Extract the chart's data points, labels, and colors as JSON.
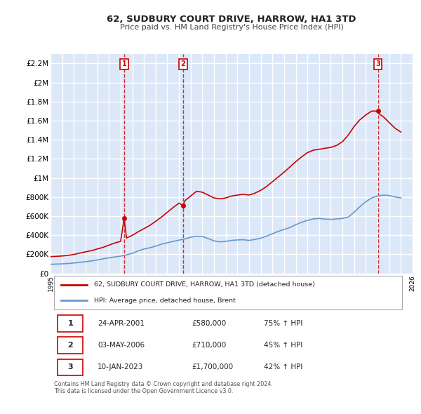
{
  "title": "62, SUDBURY COURT DRIVE, HARROW, HA1 3TD",
  "subtitle": "Price paid vs. HM Land Registry's House Price Index (HPI)",
  "ylabel_ticks": [
    "£0",
    "£200K",
    "£400K",
    "£600K",
    "£800K",
    "£1M",
    "£1.2M",
    "£1.4M",
    "£1.6M",
    "£1.8M",
    "£2M",
    "£2.2M"
  ],
  "ytick_values": [
    0,
    200000,
    400000,
    600000,
    800000,
    1000000,
    1200000,
    1400000,
    1600000,
    1800000,
    2000000,
    2200000
  ],
  "ylim": [
    0,
    2300000
  ],
  "xmin": 1995,
  "xmax": 2026,
  "plot_bg_color": "#dce8f8",
  "grid_color": "#ffffff",
  "hpi_color": "#6699cc",
  "price_color": "#cc0000",
  "vline_color": "#cc0000",
  "sale_dates": [
    2001.31,
    2006.34,
    2023.03
  ],
  "sale_prices": [
    580000,
    710000,
    1700000
  ],
  "sale_labels": [
    "1",
    "2",
    "3"
  ],
  "legend_label_red": "62, SUDBURY COURT DRIVE, HARROW, HA1 3TD (detached house)",
  "legend_label_blue": "HPI: Average price, detached house, Brent",
  "table_rows": [
    [
      "1",
      "24-APR-2001",
      "£580,000",
      "75% ↑ HPI"
    ],
    [
      "2",
      "03-MAY-2006",
      "£710,000",
      "45% ↑ HPI"
    ],
    [
      "3",
      "10-JAN-2023",
      "£1,700,000",
      "42% ↑ HPI"
    ]
  ],
  "footer": "Contains HM Land Registry data © Crown copyright and database right 2024.\nThis data is licensed under the Open Government Licence v3.0.",
  "hpi_x": [
    1995,
    1995.5,
    1996,
    1996.5,
    1997,
    1997.5,
    1998,
    1998.5,
    1999,
    1999.5,
    2000,
    2000.5,
    2001,
    2001.5,
    2002,
    2002.5,
    2003,
    2003.5,
    2004,
    2004.5,
    2005,
    2005.5,
    2006,
    2006.5,
    2007,
    2007.5,
    2008,
    2008.5,
    2009,
    2009.5,
    2010,
    2010.5,
    2011,
    2011.5,
    2012,
    2012.5,
    2013,
    2013.5,
    2014,
    2014.5,
    2015,
    2015.5,
    2016,
    2016.5,
    2017,
    2017.5,
    2018,
    2018.5,
    2019,
    2019.5,
    2020,
    2020.5,
    2021,
    2021.5,
    2022,
    2022.5,
    2023,
    2023.5,
    2024,
    2024.5,
    2025
  ],
  "hpi_y": [
    95000,
    97000,
    99000,
    103000,
    108000,
    115000,
    122000,
    130000,
    140000,
    152000,
    162000,
    172000,
    180000,
    193000,
    210000,
    235000,
    255000,
    268000,
    285000,
    305000,
    320000,
    335000,
    348000,
    360000,
    378000,
    390000,
    385000,
    365000,
    340000,
    330000,
    335000,
    345000,
    350000,
    352000,
    345000,
    355000,
    368000,
    390000,
    415000,
    440000,
    460000,
    480000,
    510000,
    535000,
    555000,
    570000,
    575000,
    568000,
    565000,
    570000,
    575000,
    590000,
    640000,
    700000,
    750000,
    790000,
    810000,
    820000,
    815000,
    800000,
    790000
  ],
  "price_x": [
    1995,
    1995.5,
    1996,
    1996.5,
    1997,
    1997.5,
    1998,
    1998.5,
    1999,
    1999.5,
    2000,
    2000.5,
    2001,
    2001.31,
    2001.5,
    2002,
    2002.5,
    2003,
    2003.5,
    2004,
    2004.5,
    2005,
    2005.5,
    2006,
    2006.34,
    2006.5,
    2007,
    2007.5,
    2008,
    2008.5,
    2009,
    2009.5,
    2010,
    2010.5,
    2011,
    2011.5,
    2012,
    2012.5,
    2013,
    2013.5,
    2014,
    2014.5,
    2015,
    2015.5,
    2016,
    2016.5,
    2017,
    2017.5,
    2018,
    2018.5,
    2019,
    2019.5,
    2020,
    2020.5,
    2021,
    2021.5,
    2022,
    2022.5,
    2023,
    2023.03,
    2023.5,
    2024,
    2024.5,
    2025
  ],
  "price_y": [
    175000,
    178000,
    182000,
    188000,
    198000,
    212000,
    225000,
    238000,
    255000,
    272000,
    295000,
    318000,
    335000,
    580000,
    370000,
    398000,
    435000,
    468000,
    502000,
    545000,
    590000,
    640000,
    690000,
    735000,
    710000,
    760000,
    810000,
    860000,
    850000,
    820000,
    790000,
    780000,
    790000,
    810000,
    820000,
    828000,
    820000,
    840000,
    870000,
    910000,
    960000,
    1010000,
    1060000,
    1115000,
    1170000,
    1220000,
    1265000,
    1290000,
    1300000,
    1310000,
    1320000,
    1340000,
    1380000,
    1450000,
    1540000,
    1610000,
    1660000,
    1700000,
    1700000,
    1680000,
    1640000,
    1580000,
    1520000,
    1480000
  ]
}
